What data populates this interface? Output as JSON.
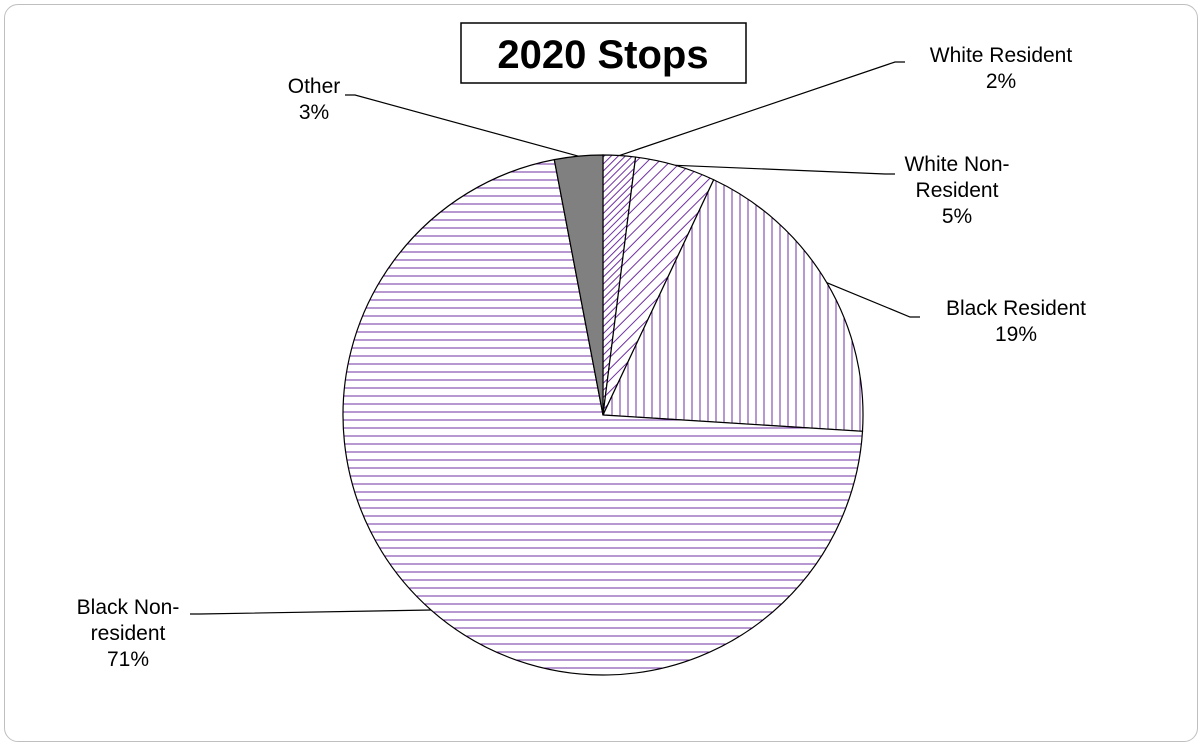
{
  "chart_data": {
    "type": "pie",
    "title": "2020 Stops",
    "slices": [
      {
        "category": "White Resident",
        "label_lines": [
          "White Resident"
        ],
        "value": 2,
        "value_label": "2%",
        "fill": "diag-dense"
      },
      {
        "category": "White Non-Resident",
        "label_lines": [
          "White Non-",
          "Resident"
        ],
        "value": 5,
        "value_label": "5%",
        "fill": "diag-sparse"
      },
      {
        "category": "Black Resident",
        "label_lines": [
          "Black Resident"
        ],
        "value": 19,
        "value_label": "19%",
        "fill": "vertical-lines"
      },
      {
        "category": "Black Non-resident",
        "label_lines": [
          "Black Non-",
          "resident"
        ],
        "value": 71,
        "value_label": "71%",
        "fill": "horizontal-lines"
      },
      {
        "category": "Other",
        "label_lines": [
          "Other"
        ],
        "value": 3,
        "value_label": "3%",
        "fill": "solid-gray"
      }
    ],
    "start_angle_deg": 0,
    "direction": "clockwise",
    "legend": "none",
    "colors": {
      "pattern_line": "#7030a0",
      "solid_gray": "#808080",
      "outline": "#000000"
    }
  }
}
